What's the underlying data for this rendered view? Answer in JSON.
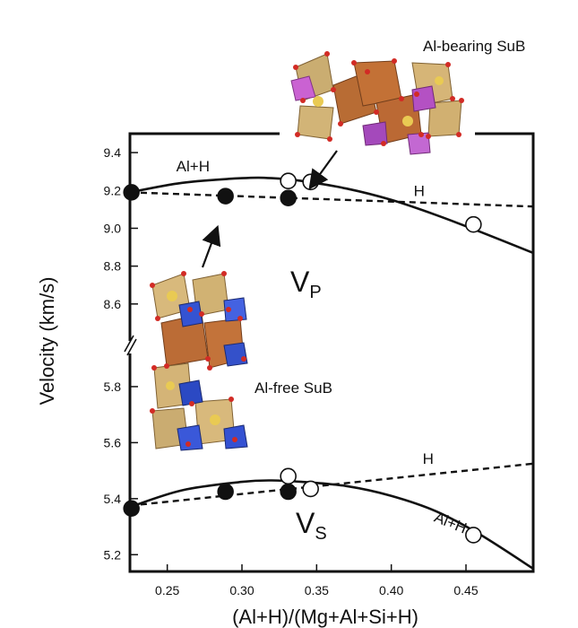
{
  "chart_data": {
    "type": "line",
    "xlabel": "(Al+H)/(Mg+Al+Si+H)",
    "ylabel": "Velocity (km/s)",
    "xlim": [
      0.225,
      0.495
    ],
    "x_ticks": [
      0.25,
      0.3,
      0.35,
      0.4,
      0.45
    ],
    "x_tick_labels": [
      "0.25",
      "0.30",
      "0.35",
      "0.40",
      "0.45"
    ],
    "broken_y_axis": true,
    "panels": [
      {
        "id": "vp",
        "label_main": "V",
        "label_sub": "P",
        "ylim": [
          8.4,
          9.5
        ],
        "y_ticks": [
          8.6,
          8.8,
          9.0,
          9.2,
          9.4
        ],
        "y_tick_labels": [
          "8.6",
          "8.8",
          "9.0",
          "9.2",
          "9.4"
        ],
        "series": [
          {
            "name": "Al+H",
            "style": "solid",
            "x": [
              0.225,
              0.26,
              0.3,
              0.32,
              0.34,
              0.37,
              0.4,
              0.43,
              0.46,
              0.495
            ],
            "y": [
              9.19,
              9.24,
              9.265,
              9.265,
              9.25,
              9.21,
              9.15,
              9.07,
              8.98,
              8.87
            ]
          },
          {
            "name": "H",
            "style": "dashed",
            "x": [
              0.225,
              0.495
            ],
            "y": [
              9.19,
              9.115
            ]
          }
        ],
        "points_filled": [
          {
            "x": 0.226,
            "y": 9.19
          },
          {
            "x": 0.289,
            "y": 9.17
          },
          {
            "x": 0.331,
            "y": 9.16
          }
        ],
        "points_open": [
          {
            "x": 0.331,
            "y": 9.25
          },
          {
            "x": 0.346,
            "y": 9.245
          },
          {
            "x": 0.455,
            "y": 9.02
          }
        ],
        "annotations": [
          {
            "text": "Al+H",
            "x": 0.256,
            "y": 9.3
          },
          {
            "text": "H",
            "x": 0.415,
            "y": 9.17
          }
        ]
      },
      {
        "id": "vs",
        "label_main": "V",
        "label_sub": "S",
        "ylim": [
          5.14,
          5.96
        ],
        "y_ticks": [
          5.2,
          5.4,
          5.6,
          5.8
        ],
        "y_tick_labels": [
          "5.2",
          "5.4",
          "5.6",
          "5.8"
        ],
        "series": [
          {
            "name": "Al+H",
            "style": "solid",
            "x": [
              0.225,
              0.26,
              0.3,
              0.32,
              0.34,
              0.37,
              0.4,
              0.43,
              0.46,
              0.495
            ],
            "y": [
              5.37,
              5.43,
              5.46,
              5.465,
              5.46,
              5.445,
              5.41,
              5.355,
              5.27,
              5.15
            ]
          },
          {
            "name": "H",
            "style": "dashed",
            "x": [
              0.225,
              0.495
            ],
            "y": [
              5.375,
              5.525
            ]
          }
        ],
        "points_filled": [
          {
            "x": 0.226,
            "y": 5.365
          },
          {
            "x": 0.289,
            "y": 5.425
          },
          {
            "x": 0.331,
            "y": 5.425
          }
        ],
        "points_open": [
          {
            "x": 0.331,
            "y": 5.48
          },
          {
            "x": 0.346,
            "y": 5.435
          },
          {
            "x": 0.455,
            "y": 5.27
          }
        ],
        "annotations": [
          {
            "text": "H",
            "x": 0.421,
            "y": 5.525
          },
          {
            "text": "Al+H",
            "x": 0.428,
            "y": 5.32
          }
        ]
      }
    ],
    "insets": [
      {
        "id": "al-bearing",
        "label": "Al-bearing SuB"
      },
      {
        "id": "al-free",
        "label": "Al-free SuB"
      }
    ]
  }
}
